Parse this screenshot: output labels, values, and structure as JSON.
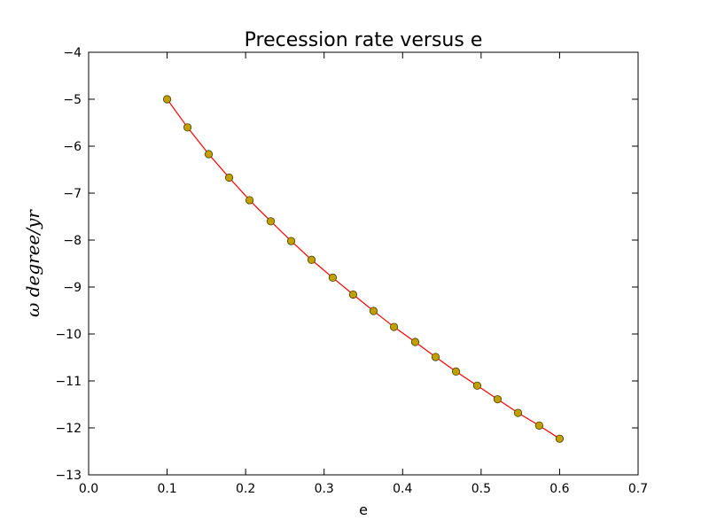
{
  "chart_data": {
    "type": "line",
    "title": "Precession rate versus e",
    "xlabel": "e",
    "ylabel": "ω degree/yr",
    "xlim": [
      0.0,
      0.7
    ],
    "ylim": [
      -13,
      -4
    ],
    "xticks": [
      "0.0",
      "0.1",
      "0.2",
      "0.3",
      "0.4",
      "0.5",
      "0.6",
      "0.7"
    ],
    "yticks": [
      "−4",
      "−5",
      "−6",
      "−7",
      "−8",
      "−9",
      "−10",
      "−11",
      "−12",
      "−13"
    ],
    "grid": false,
    "line_color": "#ff0000",
    "marker_fill": "#bfa000",
    "marker_edge": "#4a3f00",
    "series": [
      {
        "x": [
          0.1,
          0.126,
          0.153,
          0.179,
          0.205,
          0.232,
          0.258,
          0.284,
          0.311,
          0.337,
          0.363,
          0.389,
          0.416,
          0.442,
          0.468,
          0.495,
          0.521,
          0.547,
          0.574,
          0.6
        ],
        "y": [
          -5.0,
          -5.6,
          -6.17,
          -6.67,
          -7.15,
          -7.6,
          -8.02,
          -8.42,
          -8.8,
          -9.16,
          -9.51,
          -9.85,
          -10.17,
          -10.49,
          -10.8,
          -11.1,
          -11.39,
          -11.68,
          -11.95,
          -12.23
        ]
      }
    ]
  }
}
